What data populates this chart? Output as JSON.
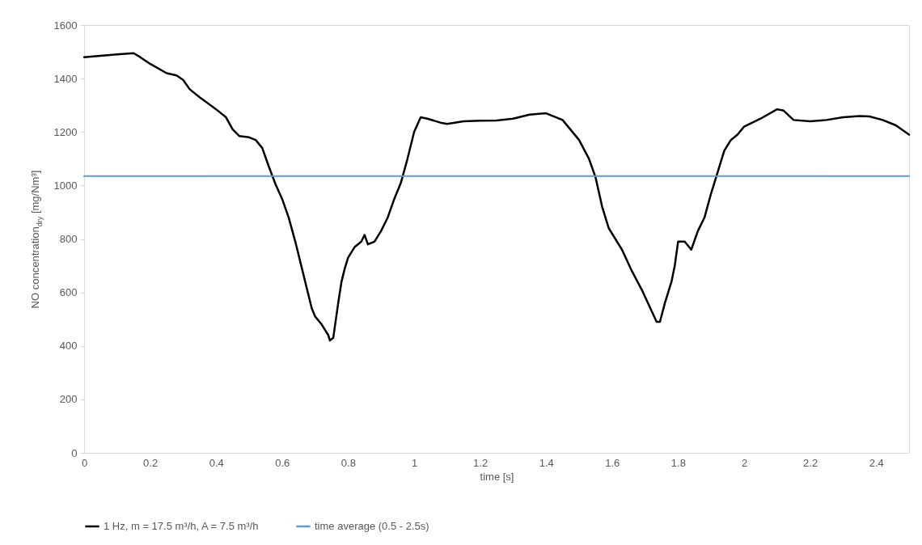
{
  "chart_data": {
    "type": "line",
    "xlabel": "time [s]",
    "ylabel": "NO concentration$_{dry}$ [mg/Nm³]",
    "xlim": [
      0,
      2.5
    ],
    "xticks": [
      0,
      0.2,
      0.4,
      0.6,
      0.8,
      1,
      1.2,
      1.4,
      1.6,
      1.8,
      2,
      2.2,
      2.4
    ],
    "ylim": [
      0,
      1600
    ],
    "yticks": [
      0,
      200,
      400,
      600,
      800,
      1000,
      1200,
      1400,
      1600
    ],
    "legend": "bottom",
    "line_style": "solid",
    "series": [
      {
        "name": "1 Hz, m = 17.5 m³/h, A = 7.5 m³/h",
        "color": "#000000",
        "x": [
          0,
          0.05,
          0.1,
          0.15,
          0.17,
          0.2,
          0.25,
          0.28,
          0.3,
          0.32,
          0.35,
          0.4,
          0.43,
          0.45,
          0.47,
          0.5,
          0.52,
          0.54,
          0.56,
          0.58,
          0.6,
          0.62,
          0.64,
          0.66,
          0.68,
          0.69,
          0.7,
          0.72,
          0.74,
          0.745,
          0.755,
          0.77,
          0.78,
          0.79,
          0.8,
          0.82,
          0.84,
          0.85,
          0.86,
          0.88,
          0.9,
          0.92,
          0.94,
          0.96,
          0.98,
          1,
          1.02,
          1.04,
          1.08,
          1.1,
          1.15,
          1.2,
          1.25,
          1.3,
          1.35,
          1.4,
          1.45,
          1.5,
          1.53,
          1.55,
          1.57,
          1.59,
          1.61,
          1.63,
          1.66,
          1.69,
          1.72,
          1.735,
          1.745,
          1.76,
          1.78,
          1.79,
          1.8,
          1.82,
          1.84,
          1.86,
          1.88,
          1.9,
          1.92,
          1.94,
          1.96,
          1.98,
          2,
          2.05,
          2.1,
          2.12,
          2.15,
          2.2,
          2.25,
          2.3,
          2.35,
          2.38,
          2.42,
          2.46,
          2.5
        ],
        "values": [
          1480,
          1485,
          1490,
          1495,
          1480,
          1455,
          1420,
          1412,
          1395,
          1360,
          1330,
          1285,
          1255,
          1210,
          1185,
          1180,
          1170,
          1140,
          1070,
          1005,
          950,
          880,
          790,
          690,
          590,
          540,
          510,
          480,
          440,
          420,
          430,
          560,
          640,
          690,
          730,
          770,
          790,
          815,
          780,
          790,
          830,
          880,
          950,
          1010,
          1100,
          1200,
          1255,
          1250,
          1235,
          1230,
          1240,
          1242,
          1243,
          1250,
          1265,
          1270,
          1245,
          1170,
          1100,
          1030,
          920,
          840,
          800,
          760,
          680,
          610,
          530,
          490,
          490,
          560,
          640,
          700,
          790,
          790,
          760,
          830,
          880,
          970,
          1050,
          1130,
          1170,
          1190,
          1220,
          1250,
          1285,
          1280,
          1245,
          1240,
          1245,
          1255,
          1260,
          1258,
          1245,
          1225,
          1190
        ]
      },
      {
        "name": "time average (0.5 - 2.5s)",
        "color": "#5b9bd5",
        "x": [
          0,
          2.5
        ],
        "values": [
          1035,
          1035
        ]
      }
    ]
  }
}
